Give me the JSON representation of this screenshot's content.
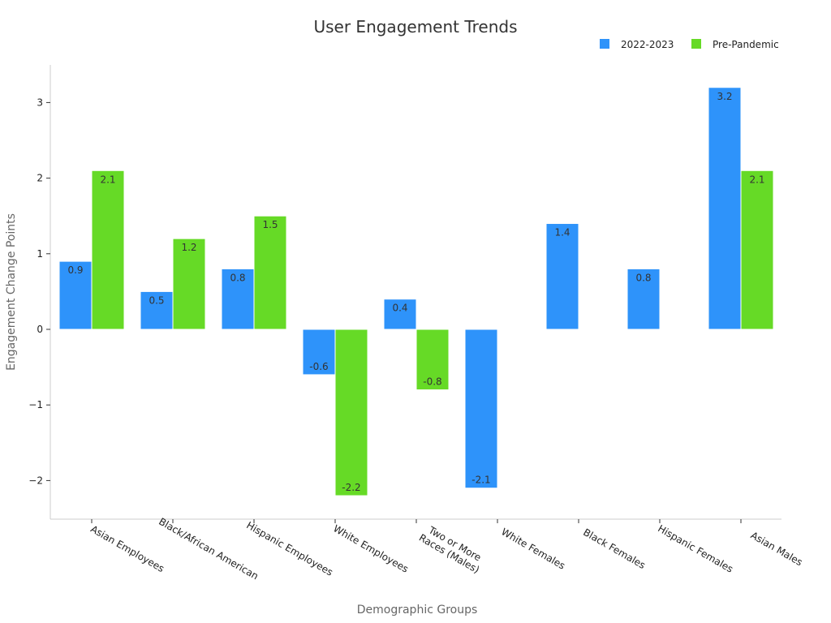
{
  "chart_data": {
    "type": "bar",
    "title": "User Engagement Trends",
    "xlabel": "Demographic Groups",
    "ylabel": "Engagement Change Points",
    "categories": [
      [
        "Asian Employees"
      ],
      [
        "Black/African American"
      ],
      [
        "Hispanic Employees"
      ],
      [
        "White Employees"
      ],
      [
        "Two or More",
        "Races (Males)"
      ],
      [
        "White Females"
      ],
      [
        "Black Females"
      ],
      [
        "Hispanic Females"
      ],
      [
        "Asian Males"
      ]
    ],
    "series": [
      {
        "name": "2022-2023",
        "color": "#2e93fa",
        "values": [
          0.9,
          0.5,
          0.8,
          -0.6,
          0.4,
          -2.1,
          1.4,
          0.8,
          3.2
        ]
      },
      {
        "name": "Pre-Pandemic",
        "color": "#66da26",
        "values": [
          2.1,
          1.2,
          1.5,
          -2.2,
          -0.8,
          null,
          null,
          null,
          2.1
        ]
      }
    ],
    "ylim": [
      -2.5,
      3.5
    ],
    "yticks": [
      3,
      2,
      1,
      0,
      -1,
      -2
    ],
    "ytick_labels": [
      "3",
      "2",
      "1",
      "0",
      "−1",
      "−2"
    ],
    "grid": false,
    "legend_position": "top-right"
  }
}
